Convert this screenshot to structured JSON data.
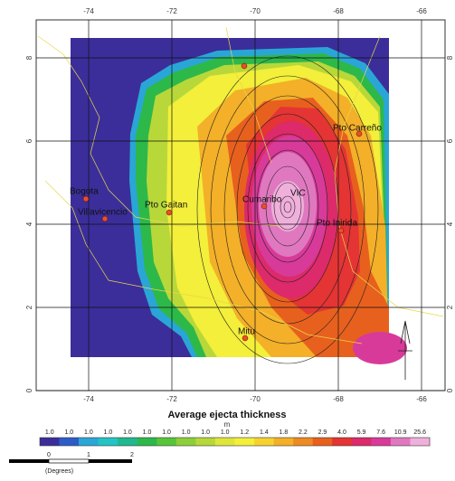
{
  "map": {
    "title": "Average ejecta thickness",
    "unit": "m",
    "x_ticks": [
      -74,
      -72,
      -70,
      -68,
      -66
    ],
    "y_ticks": [
      0,
      2,
      4,
      6,
      8
    ],
    "places": [
      "Pto Carreño",
      "Bogota",
      "Villavicencio",
      "Pto Gaitan",
      "Cumaribo",
      "VIC",
      "Pto Inirida",
      "Mitu"
    ],
    "legend": {
      "labels": [
        "1.0",
        "1.0",
        "1.0",
        "1.0",
        "1.0",
        "1.0",
        "1.0",
        "1.0",
        "1.0",
        "1.0",
        "1.2",
        "1.4",
        "1.8",
        "2.2",
        "2.9",
        "4.0",
        "5.9",
        "7.6",
        "10.9",
        "25.6"
      ],
      "colors": [
        "#3b2e9a",
        "#2d5cc8",
        "#2aa6d6",
        "#22c4c4",
        "#20b890",
        "#2db84a",
        "#58c43a",
        "#8ccf3a",
        "#b8d83a",
        "#dfe63a",
        "#f3ef3a",
        "#f7d22e",
        "#f3b028",
        "#ee8a22",
        "#e8601e",
        "#e43434",
        "#dc2a6a",
        "#d83a9a",
        "#e078c0",
        "#f0b0dc"
      ]
    },
    "scale_bar": {
      "labels": [
        "0",
        "1",
        "2"
      ],
      "unit": "(Degrees)"
    }
  }
}
